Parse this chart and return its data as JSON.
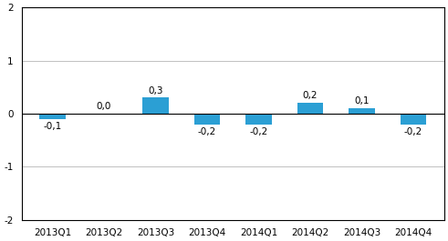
{
  "categories": [
    "2013Q1",
    "2013Q2",
    "2013Q3",
    "2013Q4",
    "2014Q1",
    "2014Q2",
    "2014Q3",
    "2014Q4"
  ],
  "values": [
    -0.1,
    0.0,
    0.3,
    -0.2,
    -0.2,
    0.2,
    0.1,
    -0.2
  ],
  "labels": [
    "-0,1",
    "0,0",
    "0,3",
    "-0,2",
    "-0,2",
    "0,2",
    "0,1",
    "-0,2"
  ],
  "bar_color": "#2B9FD4",
  "ylim": [
    -2,
    2
  ],
  "yticks": [
    -2,
    -1,
    0,
    1,
    2
  ],
  "background_color": "#ffffff",
  "bar_width": 0.5,
  "label_fontsize": 7.5,
  "tick_fontsize": 7.5
}
